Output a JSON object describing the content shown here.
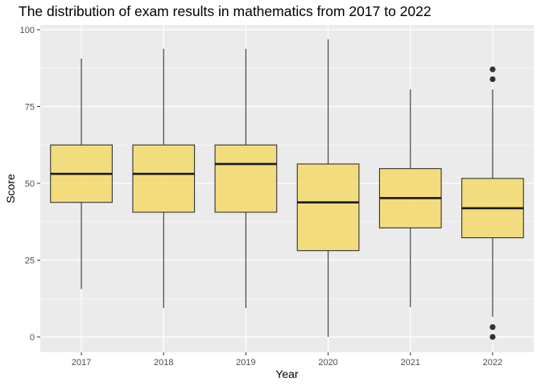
{
  "chart_data": {
    "type": "boxplot",
    "title": "The distribution of exam results in mathematics from 2017 to 2022",
    "xlabel": "Year",
    "ylabel": "Score",
    "categories": [
      "2017",
      "2018",
      "2019",
      "2020",
      "2021",
      "2022"
    ],
    "yticks": [
      0,
      25,
      50,
      75,
      100
    ],
    "ylim": [
      -5,
      101
    ],
    "grid": true,
    "colors": {
      "box_fill": "#f5d96a",
      "box_stroke": "#333333",
      "median": "#1a1a1a",
      "panel": "#ebebeb",
      "grid": "#ffffff",
      "outlier": "#333333"
    },
    "boxes": [
      {
        "year": "2017",
        "min": 15.6,
        "q1": 43.8,
        "median": 53.1,
        "q3": 62.5,
        "max": 90.6,
        "outliers": []
      },
      {
        "year": "2018",
        "min": 9.4,
        "q1": 40.6,
        "median": 53.1,
        "q3": 62.5,
        "max": 93.8,
        "outliers": []
      },
      {
        "year": "2019",
        "min": 9.4,
        "q1": 40.6,
        "median": 56.3,
        "q3": 62.5,
        "max": 93.8,
        "outliers": []
      },
      {
        "year": "2020",
        "min": 0,
        "q1": 28.1,
        "median": 43.8,
        "q3": 56.3,
        "max": 96.9,
        "outliers": []
      },
      {
        "year": "2021",
        "min": 9.7,
        "q1": 35.5,
        "median": 45.2,
        "q3": 54.8,
        "max": 80.6,
        "outliers": []
      },
      {
        "year": "2022",
        "min": 6.5,
        "q1": 32.3,
        "median": 41.9,
        "q3": 51.6,
        "max": 80.6,
        "outliers": [
          0,
          3.2,
          83.9,
          87.1
        ]
      }
    ]
  }
}
